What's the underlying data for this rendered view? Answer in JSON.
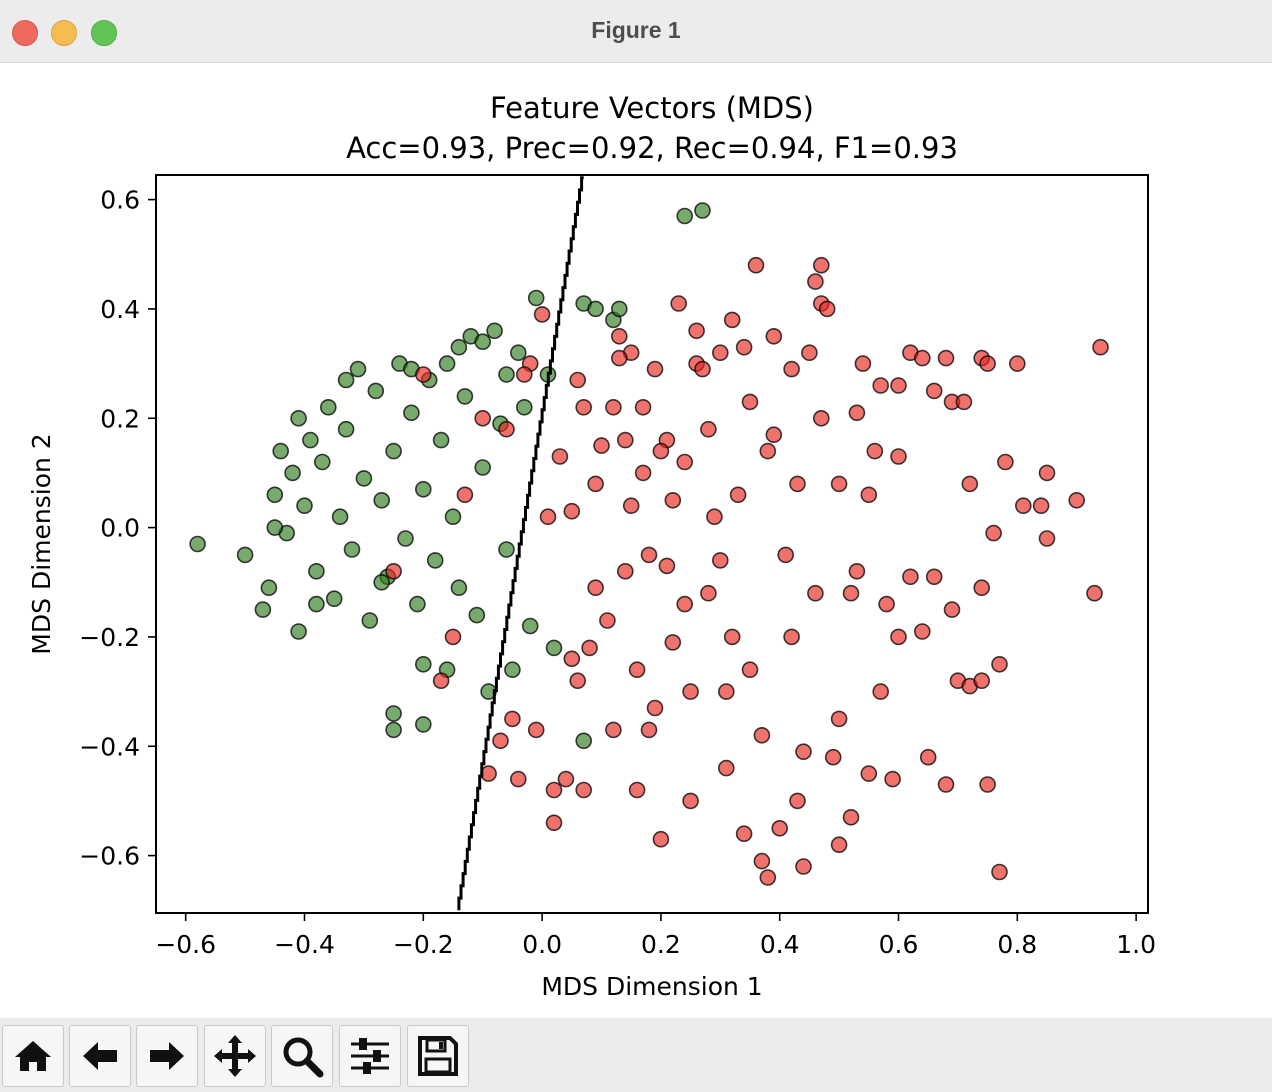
{
  "window": {
    "title": "Figure 1"
  },
  "toolbar": {
    "buttons": [
      {
        "name": "home-button",
        "icon": "home-icon"
      },
      {
        "name": "back-button",
        "icon": "arrow-left-icon"
      },
      {
        "name": "forward-button",
        "icon": "arrow-right-icon"
      },
      {
        "name": "pan-button",
        "icon": "move-icon"
      },
      {
        "name": "zoom-button",
        "icon": "magnifier-icon"
      },
      {
        "name": "configure-subplots-button",
        "icon": "sliders-icon"
      },
      {
        "name": "save-button",
        "icon": "floppy-disk-icon"
      }
    ]
  },
  "chart_data": {
    "type": "scatter",
    "title": "Feature Vectors (MDS)",
    "subtitle": "Acc=0.93, Prec=0.92, Rec=0.94, F1=0.93",
    "xlabel": "MDS Dimension 1",
    "ylabel": "MDS Dimension 2",
    "xlim": [
      -0.65,
      1.02
    ],
    "ylim": [
      -0.705,
      0.645
    ],
    "xticks": [
      -0.6,
      -0.4,
      -0.2,
      0.0,
      0.2,
      0.4,
      0.6,
      0.8,
      1.0
    ],
    "xtick_labels": [
      "−0.6",
      "−0.4",
      "−0.2",
      "0.0",
      "0.2",
      "0.4",
      "0.6",
      "0.8",
      "1.0"
    ],
    "yticks": [
      -0.6,
      -0.4,
      -0.2,
      0.0,
      0.2,
      0.4,
      0.6
    ],
    "ytick_labels": [
      "−0.6",
      "−0.4",
      "−0.2",
      "0.0",
      "0.2",
      "0.4",
      "0.6"
    ],
    "grid": false,
    "legend": "none",
    "colors": {
      "class_a": "#2f7d1f",
      "class_b": "#e8271f",
      "edge": "#000000",
      "boundary": "#000000"
    },
    "series": [
      {
        "color": "#2f7d1f",
        "points": [
          [
            -0.58,
            -0.03
          ],
          [
            -0.5,
            -0.05
          ],
          [
            -0.47,
            -0.15
          ],
          [
            -0.46,
            -0.11
          ],
          [
            -0.45,
            0.06
          ],
          [
            -0.44,
            0.14
          ],
          [
            -0.43,
            -0.01
          ],
          [
            -0.42,
            0.1
          ],
          [
            -0.41,
            -0.19
          ],
          [
            -0.41,
            0.2
          ],
          [
            -0.4,
            0.04
          ],
          [
            -0.39,
            0.16
          ],
          [
            -0.38,
            -0.08
          ],
          [
            -0.37,
            0.12
          ],
          [
            -0.36,
            0.22
          ],
          [
            -0.35,
            -0.13
          ],
          [
            -0.34,
            0.02
          ],
          [
            -0.33,
            0.18
          ],
          [
            -0.32,
            -0.04
          ],
          [
            -0.31,
            0.29
          ],
          [
            -0.3,
            0.09
          ],
          [
            -0.29,
            -0.17
          ],
          [
            -0.28,
            0.25
          ],
          [
            -0.27,
            0.05
          ],
          [
            -0.26,
            -0.09
          ],
          [
            -0.25,
            0.14
          ],
          [
            -0.25,
            -0.34
          ],
          [
            -0.25,
            -0.37
          ],
          [
            -0.24,
            0.3
          ],
          [
            -0.23,
            -0.02
          ],
          [
            -0.22,
            0.21
          ],
          [
            -0.21,
            -0.14
          ],
          [
            -0.2,
            0.07
          ],
          [
            -0.2,
            -0.25
          ],
          [
            -0.19,
            0.27
          ],
          [
            -0.18,
            -0.06
          ],
          [
            -0.17,
            0.16
          ],
          [
            -0.16,
            -0.26
          ],
          [
            -0.16,
            0.3
          ],
          [
            -0.15,
            0.02
          ],
          [
            -0.14,
            -0.11
          ],
          [
            -0.13,
            0.24
          ],
          [
            -0.12,
            0.35
          ],
          [
            -0.11,
            -0.16
          ],
          [
            -0.1,
            0.11
          ],
          [
            -0.09,
            -0.3
          ],
          [
            -0.08,
            0.36
          ],
          [
            -0.07,
            0.19
          ],
          [
            -0.06,
            -0.04
          ],
          [
            -0.05,
            -0.26
          ],
          [
            -0.04,
            0.32
          ],
          [
            -0.03,
            0.22
          ],
          [
            -0.02,
            -0.18
          ],
          [
            -0.01,
            0.42
          ],
          [
            0.01,
            0.28
          ],
          [
            0.02,
            -0.22
          ],
          [
            0.07,
            0.41
          ],
          [
            0.09,
            0.4
          ],
          [
            0.12,
            0.38
          ],
          [
            0.13,
            0.4
          ],
          [
            0.24,
            0.57
          ],
          [
            0.27,
            0.58
          ],
          [
            -0.2,
            -0.36
          ],
          [
            0.07,
            -0.39
          ],
          [
            -0.45,
            0.0
          ],
          [
            -0.38,
            -0.14
          ],
          [
            -0.33,
            0.27
          ],
          [
            -0.27,
            -0.1
          ],
          [
            -0.22,
            0.29
          ],
          [
            -0.14,
            0.33
          ],
          [
            -0.1,
            0.34
          ],
          [
            -0.06,
            0.28
          ]
        ]
      },
      {
        "color": "#e8271f",
        "points": [
          [
            -0.25,
            -0.08
          ],
          [
            -0.2,
            0.28
          ],
          [
            -0.17,
            -0.28
          ],
          [
            -0.15,
            -0.2
          ],
          [
            -0.13,
            0.06
          ],
          [
            -0.1,
            0.2
          ],
          [
            -0.09,
            -0.45
          ],
          [
            -0.07,
            -0.39
          ],
          [
            -0.05,
            -0.35
          ],
          [
            -0.04,
            -0.46
          ],
          [
            -0.02,
            0.3
          ],
          [
            -0.01,
            -0.37
          ],
          [
            0.0,
            0.39
          ],
          [
            0.02,
            -0.48
          ],
          [
            0.02,
            -0.54
          ],
          [
            0.03,
            0.13
          ],
          [
            0.04,
            -0.46
          ],
          [
            0.05,
            0.03
          ],
          [
            0.06,
            -0.28
          ],
          [
            0.07,
            -0.48
          ],
          [
            0.07,
            0.22
          ],
          [
            0.09,
            -0.11
          ],
          [
            0.1,
            0.15
          ],
          [
            0.12,
            -0.37
          ],
          [
            0.13,
            0.35
          ],
          [
            0.14,
            -0.08
          ],
          [
            0.15,
            0.32
          ],
          [
            0.16,
            -0.48
          ],
          [
            0.17,
            0.22
          ],
          [
            0.18,
            -0.37
          ],
          [
            0.19,
            0.29
          ],
          [
            0.2,
            -0.57
          ],
          [
            0.21,
            0.16
          ],
          [
            0.22,
            -0.21
          ],
          [
            0.23,
            0.41
          ],
          [
            0.24,
            0.12
          ],
          [
            0.25,
            -0.5
          ],
          [
            0.26,
            0.3
          ],
          [
            0.28,
            -0.12
          ],
          [
            0.3,
            0.32
          ],
          [
            0.31,
            -0.44
          ],
          [
            0.32,
            0.38
          ],
          [
            0.34,
            -0.56
          ],
          [
            0.35,
            0.23
          ],
          [
            0.36,
            0.48
          ],
          [
            0.37,
            -0.61
          ],
          [
            0.38,
            -0.64
          ],
          [
            0.39,
            0.35
          ],
          [
            0.4,
            -0.55
          ],
          [
            0.42,
            0.29
          ],
          [
            0.43,
            -0.5
          ],
          [
            0.44,
            -0.62
          ],
          [
            0.45,
            0.32
          ],
          [
            0.46,
            0.45
          ],
          [
            0.47,
            0.48
          ],
          [
            0.47,
            0.41
          ],
          [
            0.48,
            0.4
          ],
          [
            0.5,
            -0.58
          ],
          [
            0.52,
            -0.53
          ],
          [
            0.53,
            0.21
          ],
          [
            0.54,
            0.3
          ],
          [
            0.56,
            0.14
          ],
          [
            0.58,
            -0.14
          ],
          [
            0.6,
            0.13
          ],
          [
            0.62,
            0.32
          ],
          [
            0.64,
            0.31
          ],
          [
            0.66,
            0.25
          ],
          [
            0.68,
            0.31
          ],
          [
            0.69,
            0.23
          ],
          [
            0.71,
            0.23
          ],
          [
            0.72,
            0.08
          ],
          [
            0.74,
            0.31
          ],
          [
            0.75,
            0.3
          ],
          [
            0.76,
            -0.01
          ],
          [
            0.78,
            0.12
          ],
          [
            0.8,
            0.3
          ],
          [
            0.81,
            0.04
          ],
          [
            0.84,
            0.04
          ],
          [
            0.85,
            0.1
          ],
          [
            0.85,
            -0.02
          ],
          [
            0.9,
            0.05
          ],
          [
            0.93,
            -0.12
          ],
          [
            0.94,
            0.33
          ],
          [
            0.77,
            -0.63
          ],
          [
            0.75,
            -0.47
          ],
          [
            0.77,
            -0.25
          ],
          [
            0.68,
            -0.47
          ],
          [
            0.65,
            -0.42
          ],
          [
            0.59,
            -0.46
          ],
          [
            0.62,
            -0.09
          ],
          [
            0.6,
            -0.2
          ],
          [
            0.55,
            -0.45
          ],
          [
            0.7,
            -0.28
          ],
          [
            0.72,
            -0.29
          ],
          [
            0.74,
            -0.28
          ],
          [
            0.74,
            -0.11
          ],
          [
            0.69,
            -0.15
          ],
          [
            0.64,
            -0.19
          ],
          [
            0.66,
            -0.09
          ],
          [
            0.57,
            -0.3
          ],
          [
            0.53,
            -0.08
          ],
          [
            0.6,
            0.26
          ],
          [
            0.57,
            0.26
          ],
          [
            0.5,
            0.08
          ],
          [
            0.38,
            0.14
          ],
          [
            0.15,
            0.04
          ],
          [
            0.25,
            -0.3
          ],
          [
            0.33,
            0.06
          ],
          [
            0.42,
            -0.2
          ],
          [
            0.3,
            -0.06
          ],
          [
            -0.03,
            0.28
          ],
          [
            0.26,
            0.36
          ],
          [
            0.13,
            0.31
          ],
          [
            0.27,
            0.29
          ],
          [
            0.34,
            0.33
          ],
          [
            0.22,
            0.05
          ],
          [
            0.08,
            -0.22
          ],
          [
            0.12,
            0.22
          ],
          [
            0.18,
            -0.05
          ],
          [
            0.46,
            -0.12
          ],
          [
            0.05,
            -0.24
          ],
          [
            0.31,
            -0.3
          ],
          [
            0.44,
            -0.41
          ],
          [
            0.39,
            0.17
          ],
          [
            0.16,
            -0.26
          ],
          [
            0.09,
            0.08
          ],
          [
            0.2,
            0.14
          ],
          [
            0.29,
            0.02
          ],
          [
            0.35,
            -0.26
          ],
          [
            0.47,
            0.2
          ],
          [
            0.52,
            -0.12
          ],
          [
            0.11,
            -0.17
          ],
          [
            0.24,
            -0.14
          ],
          [
            0.01,
            0.02
          ],
          [
            0.43,
            0.08
          ],
          [
            -0.06,
            0.18
          ],
          [
            0.19,
            -0.33
          ],
          [
            0.37,
            -0.38
          ],
          [
            0.5,
            -0.35
          ],
          [
            0.55,
            0.06
          ],
          [
            0.28,
            0.18
          ],
          [
            0.14,
            0.16
          ],
          [
            0.06,
            0.27
          ],
          [
            0.41,
            -0.05
          ],
          [
            0.32,
            -0.2
          ],
          [
            0.21,
            -0.07
          ],
          [
            0.49,
            -0.42
          ],
          [
            0.17,
            0.1
          ]
        ]
      }
    ],
    "boundary_line": [
      [
        -0.14,
        -0.7
      ],
      [
        0.07,
        0.64
      ]
    ]
  }
}
